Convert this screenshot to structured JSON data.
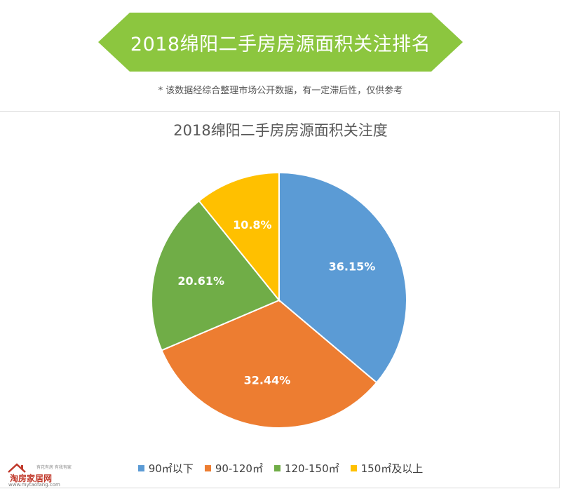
{
  "banner": {
    "title": "2018绵阳二手房房源面积关注排名",
    "color": "#8cc63f"
  },
  "disclaimer": "* 该数据经综合整理市场公开数据，有一定滞后性，仅供参考",
  "chart_data": {
    "type": "pie",
    "title": "2018绵阳二手房房源面积关注度",
    "categories": [
      "90㎡以下",
      "90-120㎡",
      "120-150㎡",
      "150㎡及以上"
    ],
    "values": [
      36.15,
      32.44,
      20.61,
      10.8
    ],
    "labels": [
      "36.15%",
      "32.44%",
      "20.61%",
      "10.8%"
    ],
    "colors": [
      "#5b9bd5",
      "#ed7d31",
      "#70ad47",
      "#ffc000"
    ],
    "legend_position": "bottom",
    "start_angle_deg": 0,
    "direction": "clockwise"
  },
  "logo": {
    "name": "淘房家居网",
    "slogan": "有花有房 有我有家",
    "url": "www.mytaofang.com"
  }
}
